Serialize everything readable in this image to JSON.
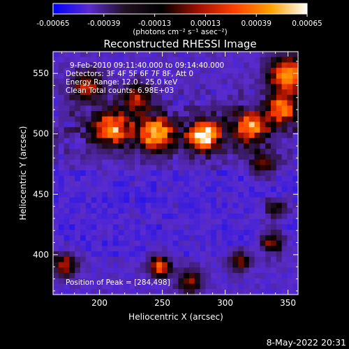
{
  "chart_data": {
    "type": "heatmap",
    "title": "Reconstructed RHESSI Image",
    "xlabel": "Heliocentric X (arcsec)",
    "ylabel": "Heliocentric Y (arcsec)",
    "xlim": [
      163,
      358
    ],
    "ylim": [
      367,
      568
    ],
    "x_ticks": [
      "200",
      "250",
      "300",
      "350"
    ],
    "y_ticks": [
      "400",
      "450",
      "500",
      "550"
    ],
    "colorbar": {
      "ticks": [
        "-0.00065",
        "-0.00039",
        "-0.00013",
        "0.00013",
        "0.00039",
        "0.00065"
      ],
      "unit_label": "(photons cm⁻² s⁻¹ asec⁻²)",
      "min": -0.00065,
      "max": 0.00065,
      "colors": [
        "#0000ff",
        "#5a2ccc",
        "#201020",
        "#000000",
        "#a01000",
        "#ff4000",
        "#ffa000",
        "#ffffff"
      ]
    },
    "annotations": {
      "time_range": "9-Feb-2010 09:11:40.000 to 09:14:40.000",
      "detectors": "Detectors: 3F 4F 5F 6F 7F 8F, Att 0",
      "energy_range": "Energy Range: 12.0 - 25.0 keV",
      "clean_counts": "Clean     Total counts: 6.98E+03",
      "peak": "Position of Peak = [284,498]"
    },
    "grid": false
  },
  "footer": {
    "date": "8-May-2022 20:31"
  }
}
